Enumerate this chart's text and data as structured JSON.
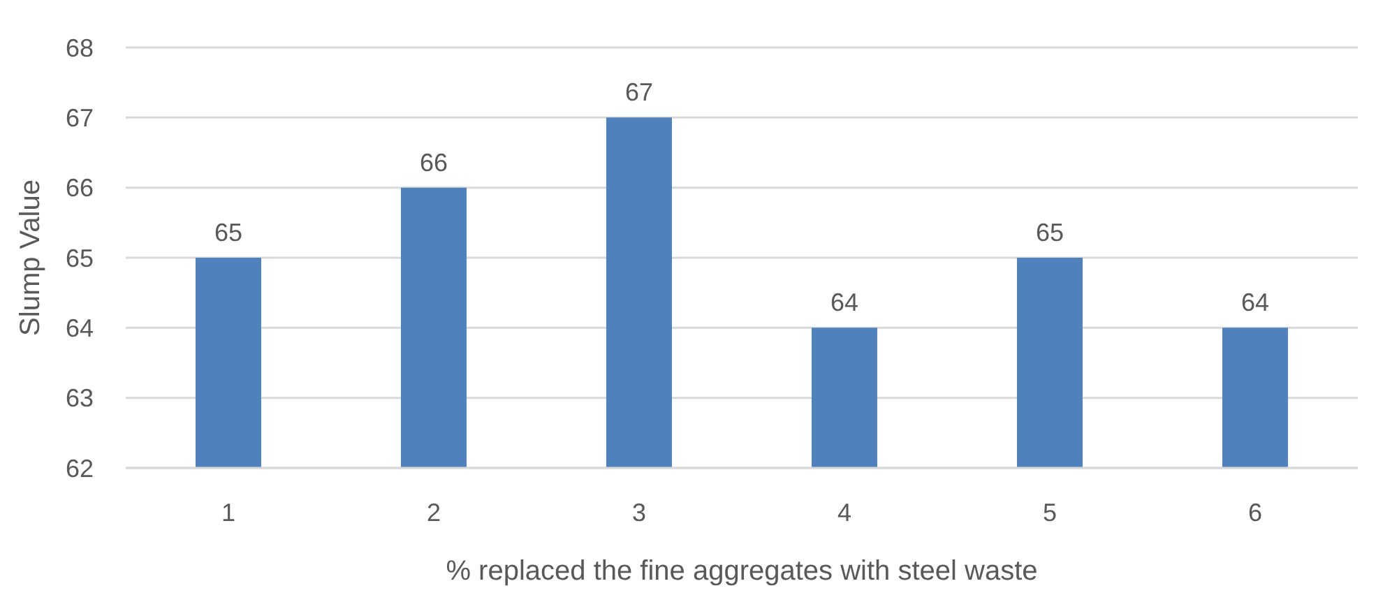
{
  "chart_data": {
    "type": "bar",
    "xlabel": "% replaced the fine aggregates with steel waste",
    "ylabel": "Slump Value",
    "categories": [
      "1",
      "2",
      "3",
      "4",
      "5",
      "6"
    ],
    "values": [
      65,
      66,
      67,
      64,
      65,
      64
    ],
    "color": "#4f81bd",
    "ylim": [
      62,
      68
    ],
    "yticks": [
      62,
      63,
      64,
      65,
      66,
      67,
      68
    ],
    "grid": "y",
    "data_labels": true
  }
}
